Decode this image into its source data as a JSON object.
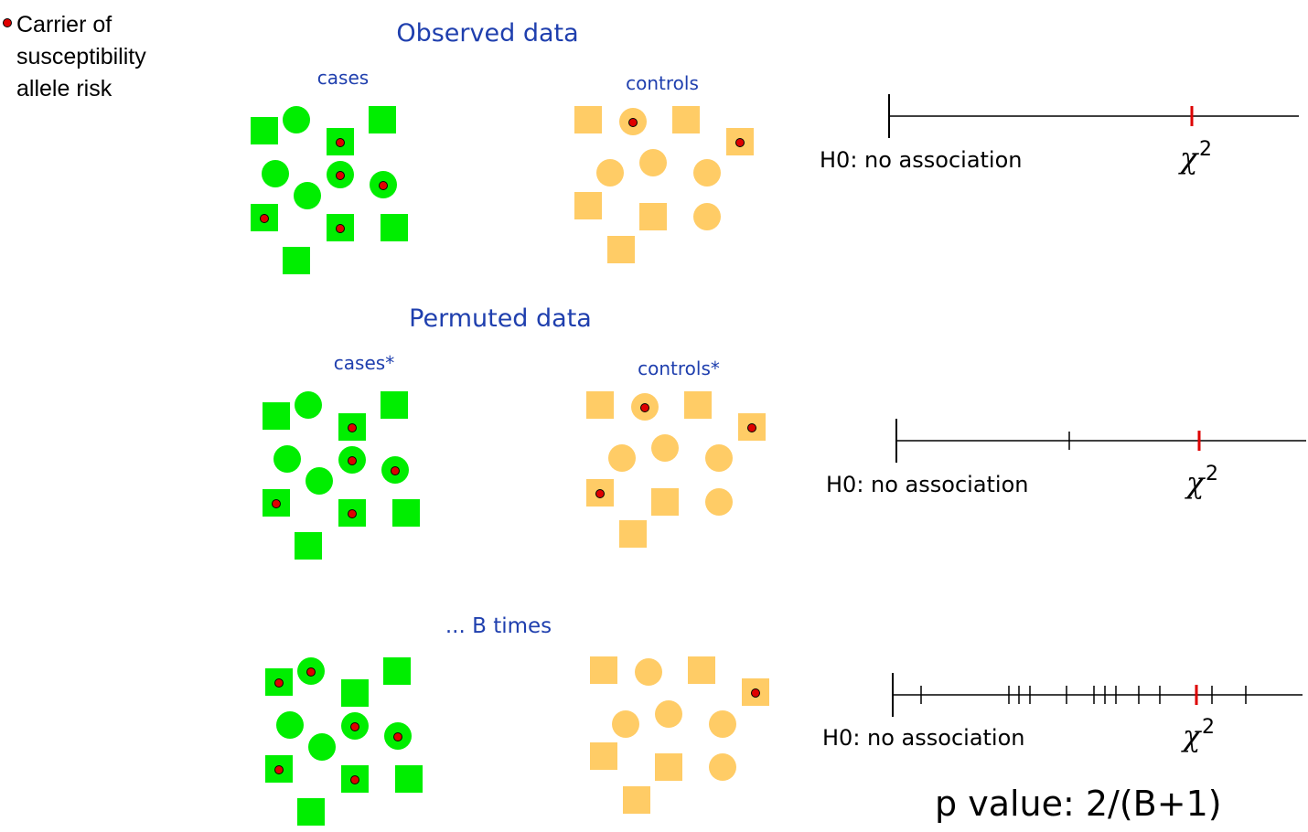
{
  "legend": {
    "lines": [
      "Carrier of",
      "susceptibility",
      "allele risk"
    ],
    "dot_color": "#d40000"
  },
  "colors": {
    "case": "#00ee00",
    "control": "#ffcc66",
    "carrier_dot": "#e00000",
    "heading": "#1f3fae",
    "axis": "#000000",
    "stat_tick": "#dd0000"
  },
  "sections": [
    {
      "heading": "Observed data",
      "case_label": "cases",
      "control_label": "controls",
      "h0_label": "H0: no association",
      "chi_symbol": "χ",
      "chi_exponent": "2"
    },
    {
      "heading": "Permuted data",
      "case_label": "cases*",
      "control_label": "controls*",
      "h0_label": "H0: no association",
      "chi_symbol": "χ",
      "chi_exponent": "2"
    },
    {
      "heading": "... B times",
      "case_label": "",
      "control_label": "",
      "h0_label": "H0: no association",
      "chi_symbol": "χ",
      "chi_exponent": "2"
    }
  ],
  "p_value": "p value: 2/(B+1)"
}
